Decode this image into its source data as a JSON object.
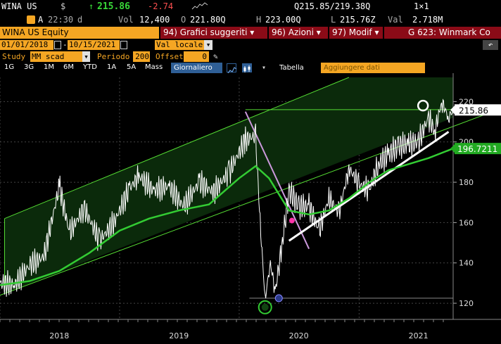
{
  "quote": {
    "ticker": "WINA US",
    "currency": "$",
    "arrow": "↑",
    "last": "215.86",
    "change": "-2.74",
    "flag": "A",
    "time": "22:30",
    "time_suffix": "d",
    "vol_label": "Vol",
    "vol": "12,400",
    "open_label": "O",
    "open": "221.80Q",
    "high_label": "H",
    "high": "223.00Q",
    "low_label": "L",
    "low": "215.76Z",
    "val_label": "Val",
    "val": "2.718M",
    "bid_ask": "Q215.85/219.38Q",
    "size": "1×1"
  },
  "toolbar": {
    "security": "WINA US Equity",
    "menu1_num": "94)",
    "menu1": "Grafici suggeriti",
    "menu2_num": "96)",
    "menu2": "Azioni",
    "menu3_num": "97)",
    "menu3": "Modif",
    "page_info": "G 623: Winmark Co"
  },
  "range": {
    "start": "01/01/2018",
    "end": "10/15/2021",
    "currency_mode": "Val locale"
  },
  "study": {
    "label": "Study",
    "study_value": "MM scad",
    "period_label": "Periodo",
    "period": "200",
    "offset_label": "Offset",
    "offset": "0"
  },
  "periods": {
    "buttons": [
      "1G",
      "3G",
      "1M",
      "6M",
      "YTD",
      "1A",
      "5A",
      "Mass"
    ],
    "active": "Giornaliero",
    "table": "Tabella",
    "add_data": "Aggiungere dati"
  },
  "colors": {
    "accent": "#f5a623",
    "menu_red": "#8b0b17",
    "price": "#ffffff",
    "ma": "#33cc33",
    "channel": "#55dd33",
    "trend": "#ffffff",
    "downtrend": "#cc99dd"
  },
  "chart_data": {
    "type": "line",
    "x_labels": [
      "2018",
      "2019",
      "2020",
      "2021"
    ],
    "x_domain": [
      "2018-01-01",
      "2021-10-15"
    ],
    "y_ticks": [
      120,
      140,
      160,
      180,
      200,
      220
    ],
    "ylim": [
      112,
      232
    ],
    "last_price_label": "215.86",
    "ma_label": "196.7211",
    "series": [
      {
        "name": "",
        "role": "price",
        "x": [
          "2018-01-01",
          "2018-02-15",
          "2018-04-01",
          "2018-05-15",
          "2018-07-01",
          "2018-08-01",
          "2018-09-15",
          "2018-11-01",
          "2018-12-15",
          "2019-02-01",
          "2019-03-01",
          "2019-04-15",
          "2019-06-01",
          "2019-07-15",
          "2019-09-01",
          "2019-10-15",
          "2019-12-01",
          "2020-01-20",
          "2020-02-20",
          "2020-03-05",
          "2020-03-20",
          "2020-04-05",
          "2020-04-20",
          "2020-05-10",
          "2020-06-01",
          "2020-07-01",
          "2020-08-01",
          "2020-09-01",
          "2020-10-01",
          "2020-11-01",
          "2020-12-01",
          "2021-01-01",
          "2021-02-01",
          "2021-03-01",
          "2021-04-01",
          "2021-05-01",
          "2021-06-01",
          "2021-07-01",
          "2021-08-01",
          "2021-08-20",
          "2021-09-10",
          "2021-10-01",
          "2021-10-15"
        ],
        "values": [
          130,
          129,
          139,
          143,
          178,
          155,
          167,
          151,
          160,
          177,
          183,
          176,
          178,
          168,
          180,
          175,
          185,
          201,
          203,
          160,
          122,
          140,
          126,
          148,
          176,
          168,
          168,
          156,
          172,
          165,
          187,
          179,
          176,
          189,
          194,
          198,
          199,
          200,
          212,
          205,
          220,
          212,
          215.86
        ]
      },
      {
        "name": "",
        "role": "ma200",
        "x": [
          "2018-01-01",
          "2018-04-01",
          "2018-07-01",
          "2018-10-01",
          "2019-01-01",
          "2019-04-01",
          "2019-07-01",
          "2019-10-01",
          "2020-01-01",
          "2020-02-20",
          "2020-04-01",
          "2020-06-01",
          "2020-08-01",
          "2020-10-01",
          "2020-12-01",
          "2021-02-01",
          "2021-04-01",
          "2021-06-01",
          "2021-08-01",
          "2021-10-15"
        ],
        "values": [
          129,
          131,
          136,
          145,
          156,
          162,
          166,
          169,
          182,
          188,
          182,
          166,
          164,
          166,
          172,
          180,
          186,
          189,
          192,
          196.72
        ]
      }
    ],
    "annotations": {
      "channel_lower": [
        [
          "2018-01-01",
          124
        ],
        [
          "2021-10-15",
          212
        ]
      ],
      "channel_upper": [
        [
          "2018-01-15",
          162
        ],
        [
          "2020-12-01",
          232
        ]
      ],
      "channel_start": "2018-01-15",
      "downtrend": [
        [
          "2020-01-20",
          215
        ],
        [
          "2020-08-01",
          147
        ]
      ],
      "uptrend": [
        [
          "2020-06-01",
          151
        ],
        [
          "2021-10-01",
          205
        ]
      ],
      "horizontal_high": [
        [
          "2020-01-20",
          216
        ],
        [
          "2021-10-15",
          216
        ]
      ],
      "horizontal_low": [
        [
          "2020-02-01",
          122.5
        ],
        [
          "2021-10-15",
          122.5
        ]
      ],
      "markers": [
        {
          "x": "2020-03-20",
          "y": 118,
          "kind": "low-circle"
        },
        {
          "x": "2020-05-01",
          "y": 122.5,
          "kind": "small-circle"
        },
        {
          "x": "2020-06-10",
          "y": 161,
          "kind": "cross"
        },
        {
          "x": "2021-07-15",
          "y": 218,
          "kind": "high-circle"
        }
      ]
    }
  }
}
